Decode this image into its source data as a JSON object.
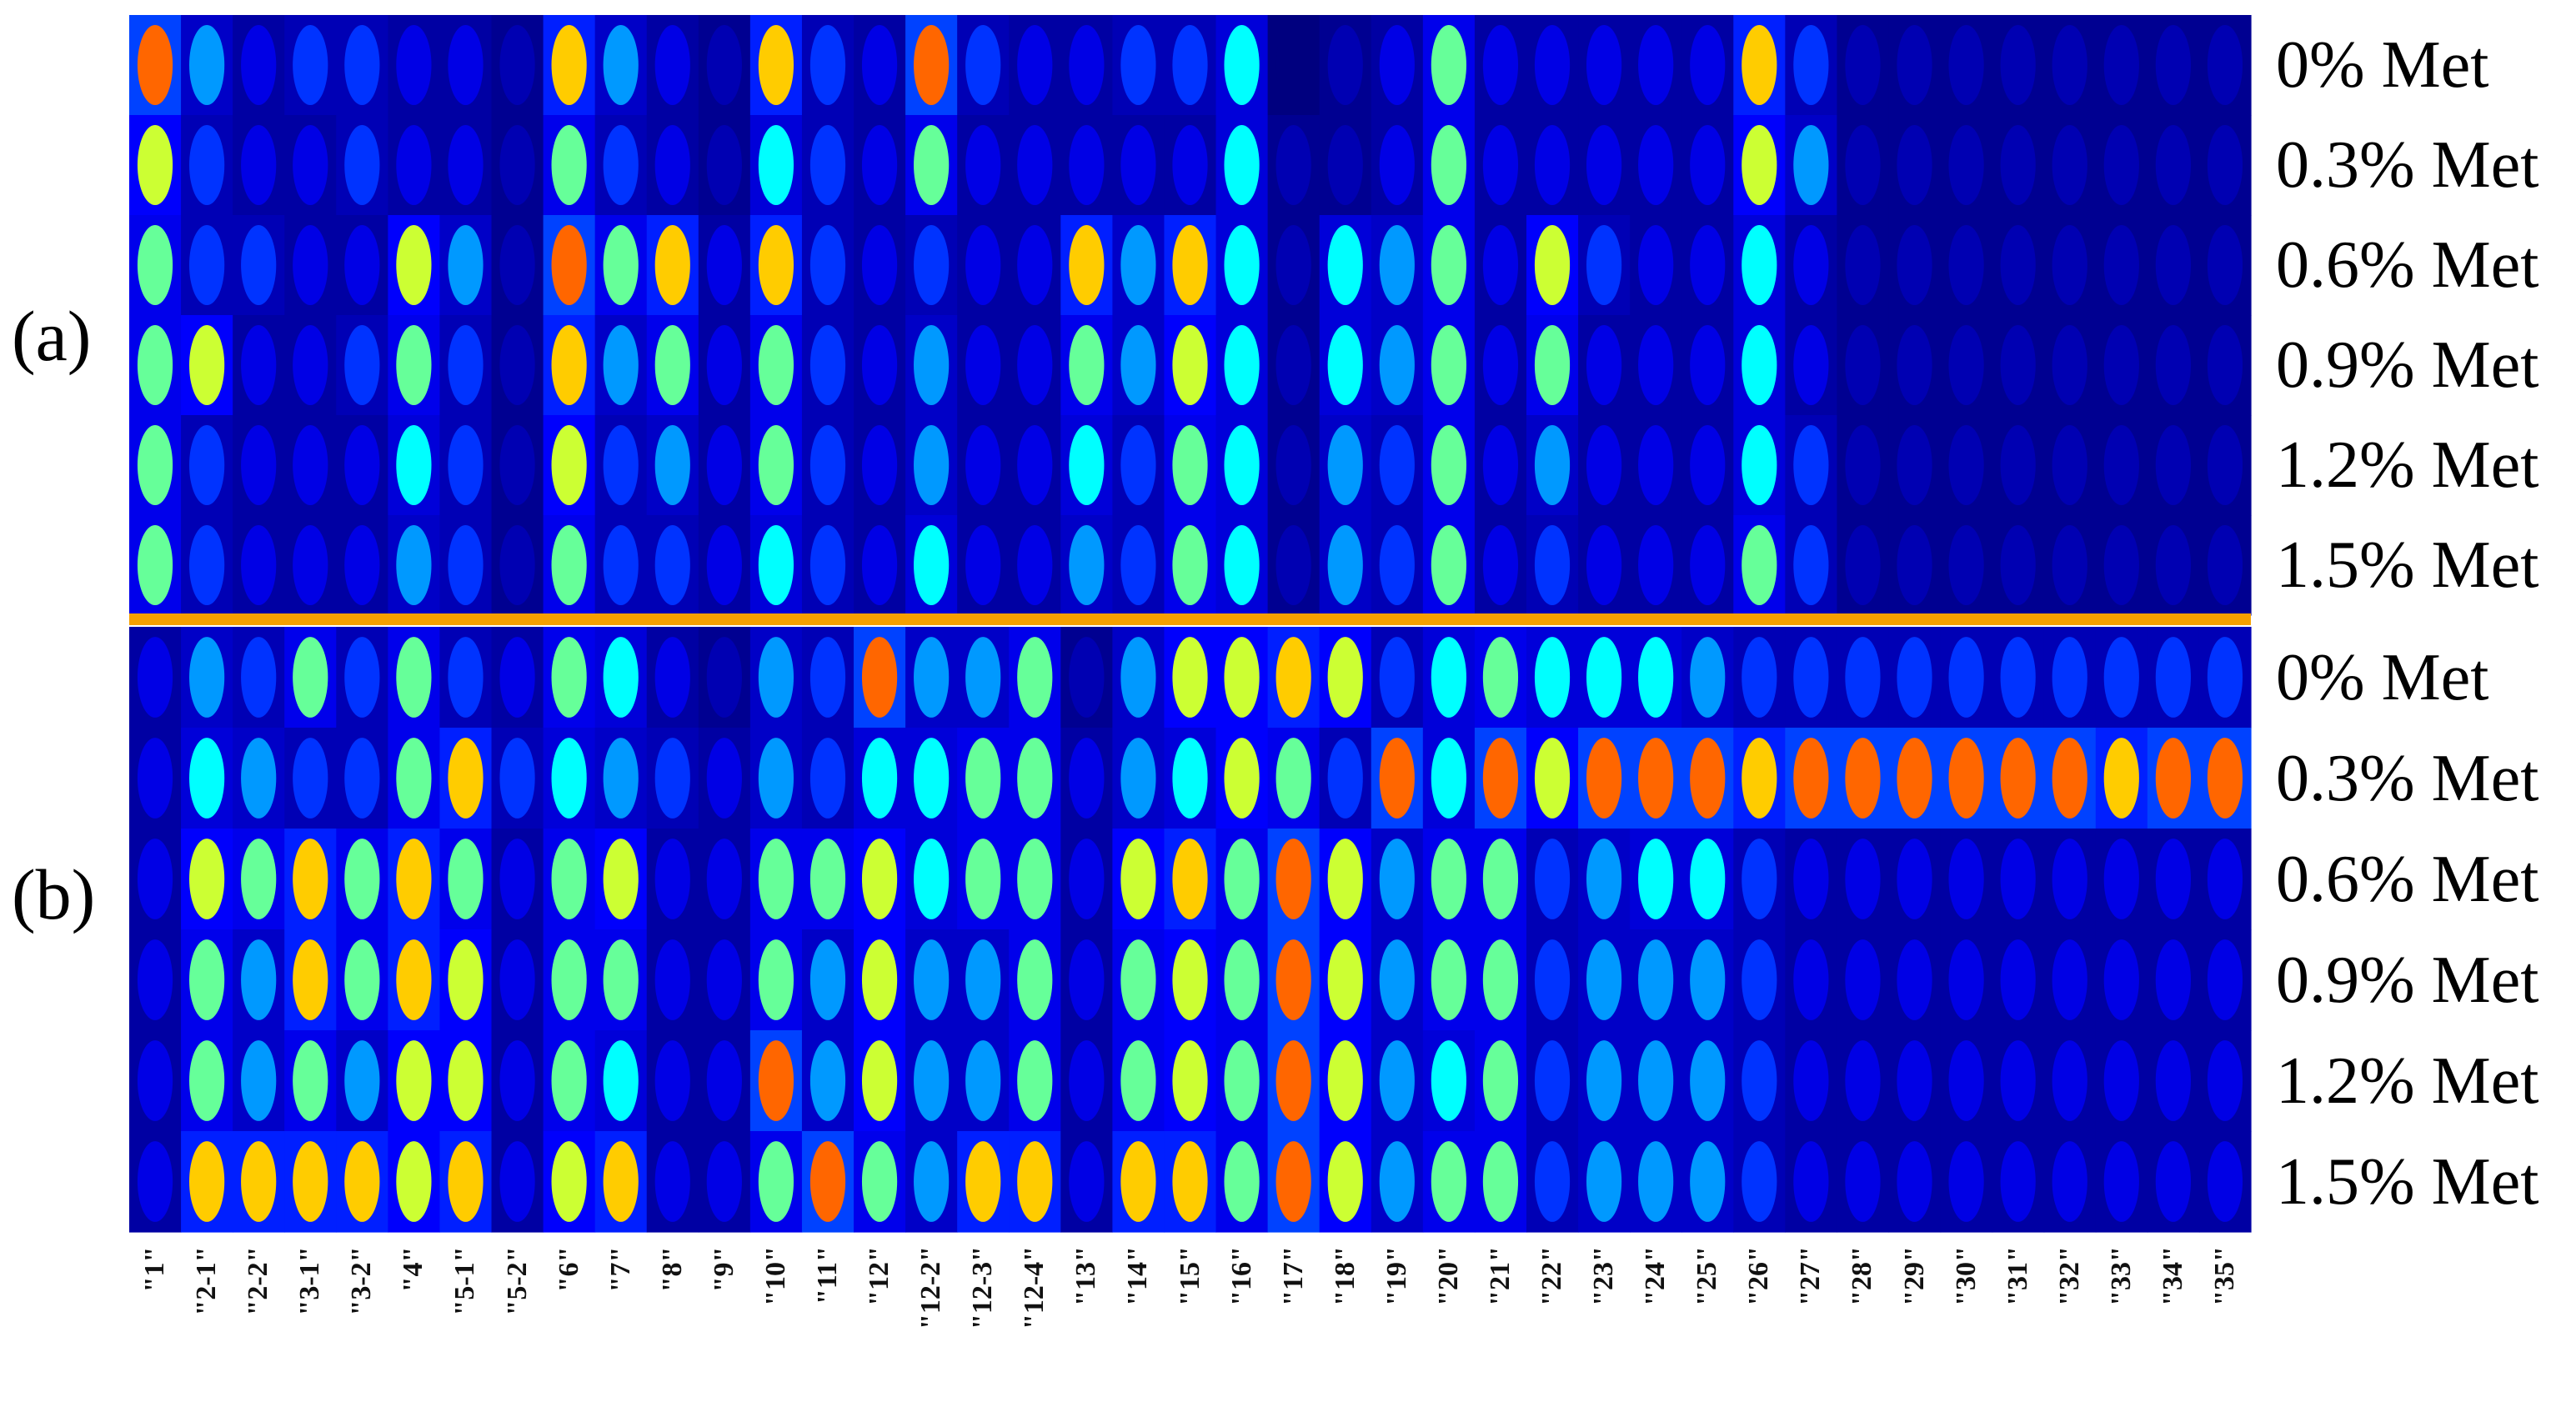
{
  "chart_data": {
    "type": "heatmap",
    "panels": [
      {
        "label": "(a)",
        "rows": [
          "0% Met",
          "0.3% Met",
          "0.6% Met",
          "0.9% Met",
          "1.2% Met",
          "1.5% Met"
        ]
      },
      {
        "label": "(b)",
        "rows": [
          "0% Met",
          "0.3% Met",
          "0.6% Met",
          "0.9% Met",
          "1.2% Met",
          "1.5% Met"
        ]
      }
    ],
    "columns": [
      "\"1\"",
      "\"2-1\"",
      "\"2-2\"",
      "\"3-1\"",
      "\"3-2\"",
      "\"4\"",
      "\"5-1\"",
      "\"5-2\"",
      "\"6\"",
      "\"7\"",
      "\"8\"",
      "\"9\"",
      "\"10\"",
      "\"11\"",
      "\"12\"",
      "\"12-2\"",
      "\"12-3\"",
      "\"12-4\"",
      "\"13\"",
      "\"14\"",
      "\"15\"",
      "\"16\"",
      "\"17\"",
      "\"18\"",
      "\"19\"",
      "\"20\"",
      "\"21\"",
      "\"22\"",
      "\"23\"",
      "\"24\"",
      "\"25\"",
      "\"26\"",
      "\"27\"",
      "\"28\"",
      "\"29\"",
      "\"30\"",
      "\"31\"",
      "\"32\"",
      "\"33\"",
      "\"34\"",
      "\"35\""
    ],
    "colormap": [
      "#00007f",
      "#0000ff",
      "#00ffff",
      "#ffff00",
      "#ff0000"
    ],
    "divider_color": "#f5a000",
    "intensity": {
      "a": [
        [
          0.9,
          0.4,
          0.2,
          0.3,
          0.3,
          0.2,
          0.2,
          0.1,
          0.8,
          0.4,
          0.2,
          0.1,
          0.8,
          0.3,
          0.2,
          0.9,
          0.3,
          0.2,
          0.2,
          0.3,
          0.3,
          0.5,
          0.0,
          0.1,
          0.2,
          0.6,
          0.2,
          0.2,
          0.2,
          0.2,
          0.2,
          0.8,
          0.3,
          0.1,
          0.1,
          0.1,
          0.1,
          0.1,
          0.1,
          0.1,
          0.1
        ],
        [
          0.7,
          0.3,
          0.2,
          0.2,
          0.3,
          0.2,
          0.2,
          0.1,
          0.6,
          0.3,
          0.2,
          0.1,
          0.5,
          0.3,
          0.2,
          0.6,
          0.2,
          0.2,
          0.2,
          0.2,
          0.2,
          0.5,
          0.1,
          0.1,
          0.2,
          0.6,
          0.2,
          0.2,
          0.2,
          0.2,
          0.2,
          0.7,
          0.4,
          0.1,
          0.1,
          0.1,
          0.1,
          0.1,
          0.1,
          0.1,
          0.1
        ],
        [
          0.6,
          0.3,
          0.3,
          0.2,
          0.2,
          0.7,
          0.4,
          0.1,
          0.9,
          0.6,
          0.8,
          0.2,
          0.8,
          0.3,
          0.2,
          0.3,
          0.2,
          0.2,
          0.8,
          0.4,
          0.8,
          0.5,
          0.1,
          0.5,
          0.4,
          0.6,
          0.2,
          0.7,
          0.3,
          0.2,
          0.2,
          0.5,
          0.2,
          0.1,
          0.1,
          0.1,
          0.1,
          0.1,
          0.1,
          0.1,
          0.1
        ],
        [
          0.6,
          0.7,
          0.2,
          0.2,
          0.3,
          0.6,
          0.3,
          0.1,
          0.8,
          0.4,
          0.6,
          0.2,
          0.6,
          0.3,
          0.2,
          0.4,
          0.2,
          0.2,
          0.6,
          0.4,
          0.7,
          0.5,
          0.1,
          0.5,
          0.4,
          0.6,
          0.2,
          0.6,
          0.2,
          0.2,
          0.2,
          0.5,
          0.2,
          0.1,
          0.1,
          0.1,
          0.1,
          0.1,
          0.1,
          0.1,
          0.1
        ],
        [
          0.6,
          0.3,
          0.2,
          0.2,
          0.2,
          0.5,
          0.3,
          0.1,
          0.7,
          0.3,
          0.4,
          0.2,
          0.6,
          0.3,
          0.2,
          0.4,
          0.2,
          0.2,
          0.5,
          0.3,
          0.6,
          0.5,
          0.1,
          0.4,
          0.3,
          0.6,
          0.2,
          0.4,
          0.2,
          0.2,
          0.2,
          0.5,
          0.3,
          0.1,
          0.1,
          0.1,
          0.1,
          0.1,
          0.1,
          0.1,
          0.1
        ],
        [
          0.6,
          0.3,
          0.2,
          0.2,
          0.2,
          0.4,
          0.3,
          0.1,
          0.6,
          0.3,
          0.3,
          0.2,
          0.5,
          0.3,
          0.2,
          0.5,
          0.2,
          0.2,
          0.4,
          0.3,
          0.6,
          0.5,
          0.1,
          0.4,
          0.3,
          0.6,
          0.2,
          0.3,
          0.2,
          0.2,
          0.2,
          0.6,
          0.3,
          0.1,
          0.1,
          0.1,
          0.1,
          0.1,
          0.1,
          0.1,
          0.1
        ]
      ],
      "b": [
        [
          0.2,
          0.4,
          0.3,
          0.6,
          0.3,
          0.6,
          0.3,
          0.2,
          0.6,
          0.5,
          0.2,
          0.1,
          0.4,
          0.3,
          0.9,
          0.4,
          0.4,
          0.6,
          0.1,
          0.4,
          0.7,
          0.7,
          0.8,
          0.7,
          0.3,
          0.5,
          0.6,
          0.5,
          0.5,
          0.5,
          0.4,
          0.3,
          0.3,
          0.3,
          0.3,
          0.3,
          0.3,
          0.3,
          0.3,
          0.3,
          0.3
        ],
        [
          0.2,
          0.5,
          0.4,
          0.3,
          0.3,
          0.6,
          0.8,
          0.3,
          0.5,
          0.4,
          0.3,
          0.2,
          0.4,
          0.3,
          0.5,
          0.5,
          0.6,
          0.6,
          0.2,
          0.4,
          0.5,
          0.7,
          0.6,
          0.3,
          0.9,
          0.5,
          0.9,
          0.7,
          0.9,
          0.9,
          0.9,
          0.8,
          0.9,
          0.9,
          0.9,
          0.9,
          0.9,
          0.9,
          0.8,
          0.9,
          0.9
        ],
        [
          0.2,
          0.7,
          0.6,
          0.8,
          0.6,
          0.8,
          0.6,
          0.2,
          0.6,
          0.7,
          0.2,
          0.2,
          0.6,
          0.6,
          0.7,
          0.5,
          0.6,
          0.6,
          0.2,
          0.7,
          0.8,
          0.6,
          0.9,
          0.7,
          0.4,
          0.6,
          0.6,
          0.3,
          0.4,
          0.5,
          0.5,
          0.3,
          0.2,
          0.2,
          0.2,
          0.2,
          0.2,
          0.2,
          0.2,
          0.2,
          0.2
        ],
        [
          0.2,
          0.6,
          0.4,
          0.8,
          0.6,
          0.8,
          0.7,
          0.2,
          0.6,
          0.6,
          0.2,
          0.2,
          0.6,
          0.4,
          0.7,
          0.4,
          0.4,
          0.6,
          0.2,
          0.6,
          0.7,
          0.6,
          0.9,
          0.7,
          0.4,
          0.6,
          0.6,
          0.3,
          0.4,
          0.4,
          0.4,
          0.3,
          0.2,
          0.2,
          0.2,
          0.2,
          0.2,
          0.2,
          0.2,
          0.2,
          0.2
        ],
        [
          0.2,
          0.6,
          0.4,
          0.6,
          0.4,
          0.7,
          0.7,
          0.2,
          0.6,
          0.5,
          0.2,
          0.2,
          0.9,
          0.4,
          0.7,
          0.4,
          0.4,
          0.6,
          0.2,
          0.6,
          0.7,
          0.6,
          0.9,
          0.7,
          0.4,
          0.5,
          0.6,
          0.3,
          0.4,
          0.4,
          0.4,
          0.3,
          0.2,
          0.2,
          0.2,
          0.2,
          0.2,
          0.2,
          0.2,
          0.2,
          0.2
        ],
        [
          0.2,
          0.8,
          0.8,
          0.8,
          0.8,
          0.7,
          0.8,
          0.2,
          0.7,
          0.8,
          0.2,
          0.2,
          0.6,
          0.9,
          0.6,
          0.4,
          0.8,
          0.8,
          0.2,
          0.8,
          0.8,
          0.6,
          0.9,
          0.7,
          0.4,
          0.6,
          0.6,
          0.3,
          0.4,
          0.4,
          0.4,
          0.3,
          0.2,
          0.2,
          0.2,
          0.2,
          0.2,
          0.2,
          0.2,
          0.2,
          0.2
        ]
      ]
    }
  }
}
